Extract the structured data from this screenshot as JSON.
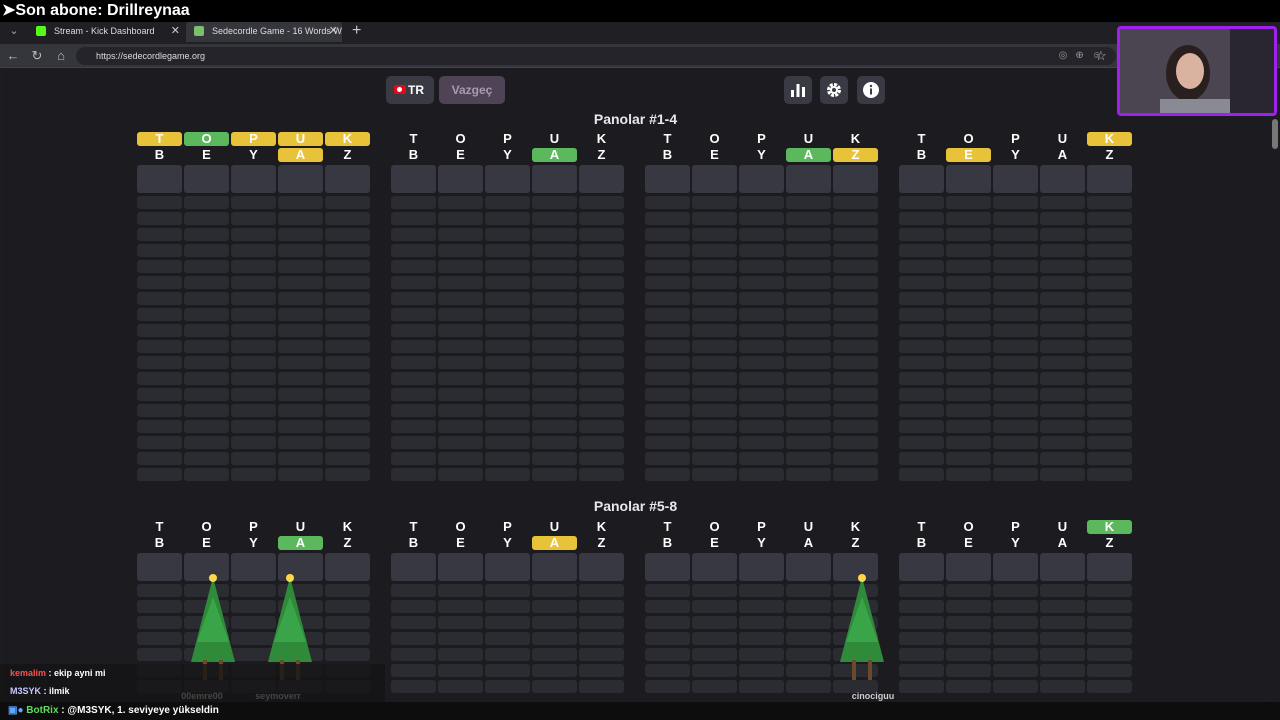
{
  "overlay": {
    "sub_banner": "➤Son abone: Drillreynaa",
    "chat": [
      {
        "user": "kemalim",
        "sep": " : ",
        "text": "ekip ayni mi"
      },
      {
        "user": "M3SYK",
        "sep": " : ",
        "text": "ilmik"
      }
    ],
    "bot_user": "BotRix",
    "bot_sep": " : ",
    "bot_message": "@M3SYK, 1. seviyeye yükseldin",
    "tree_names": [
      "00emre00",
      "seymoverr",
      "cinociguu"
    ]
  },
  "browser": {
    "tabs": [
      {
        "label": "Stream - Kick Dashboard",
        "favicon_color": "#53fc18"
      },
      {
        "label": "Sedecordle Game - 16 Words Wo",
        "favicon_color": "#7bbf6a"
      }
    ],
    "url": "https://sedecordlegame.org"
  },
  "game": {
    "lang_label": "TR",
    "giveup_label": "Vazgeç",
    "icons": [
      "stats-icon",
      "gear-icon",
      "info-icon"
    ],
    "section1_title": "Panolar #1-4",
    "section2_title": "Panolar #5-8",
    "colors": {
      "green": "#5cb85c",
      "yellow": "#e8c33a"
    },
    "boards_top": [
      {
        "rows": [
          [
            [
              "T",
              "y"
            ],
            [
              "O",
              "g"
            ],
            [
              "P",
              "y"
            ],
            [
              "U",
              "y"
            ],
            [
              "K",
              "y"
            ]
          ],
          [
            [
              "B",
              "n"
            ],
            [
              "E",
              "n"
            ],
            [
              "Y",
              "n"
            ],
            [
              "A",
              "y"
            ],
            [
              "Z",
              "n"
            ]
          ]
        ]
      },
      {
        "rows": [
          [
            [
              "T",
              "n"
            ],
            [
              "O",
              "n"
            ],
            [
              "P",
              "n"
            ],
            [
              "U",
              "n"
            ],
            [
              "K",
              "n"
            ]
          ],
          [
            [
              "B",
              "n"
            ],
            [
              "E",
              "n"
            ],
            [
              "Y",
              "n"
            ],
            [
              "A",
              "g"
            ],
            [
              "Z",
              "n"
            ]
          ]
        ]
      },
      {
        "rows": [
          [
            [
              "T",
              "n"
            ],
            [
              "O",
              "n"
            ],
            [
              "P",
              "n"
            ],
            [
              "U",
              "n"
            ],
            [
              "K",
              "n"
            ]
          ],
          [
            [
              "B",
              "n"
            ],
            [
              "E",
              "n"
            ],
            [
              "Y",
              "n"
            ],
            [
              "A",
              "g"
            ],
            [
              "Z",
              "y"
            ]
          ]
        ]
      },
      {
        "rows": [
          [
            [
              "T",
              "n"
            ],
            [
              "O",
              "n"
            ],
            [
              "P",
              "n"
            ],
            [
              "U",
              "n"
            ],
            [
              "K",
              "y"
            ]
          ],
          [
            [
              "B",
              "n"
            ],
            [
              "E",
              "y"
            ],
            [
              "Y",
              "n"
            ],
            [
              "A",
              "n"
            ],
            [
              "Z",
              "n"
            ]
          ]
        ]
      }
    ],
    "boards_bottom": [
      {
        "rows": [
          [
            [
              "T",
              "n"
            ],
            [
              "O",
              "n"
            ],
            [
              "P",
              "n"
            ],
            [
              "U",
              "n"
            ],
            [
              "K",
              "n"
            ]
          ],
          [
            [
              "B",
              "n"
            ],
            [
              "E",
              "n"
            ],
            [
              "Y",
              "n"
            ],
            [
              "A",
              "g"
            ],
            [
              "Z",
              "n"
            ]
          ]
        ]
      },
      {
        "rows": [
          [
            [
              "T",
              "n"
            ],
            [
              "O",
              "n"
            ],
            [
              "P",
              "n"
            ],
            [
              "U",
              "n"
            ],
            [
              "K",
              "n"
            ]
          ],
          [
            [
              "B",
              "n"
            ],
            [
              "E",
              "n"
            ],
            [
              "Y",
              "n"
            ],
            [
              "A",
              "y"
            ],
            [
              "Z",
              "n"
            ]
          ]
        ]
      },
      {
        "rows": [
          [
            [
              "T",
              "n"
            ],
            [
              "O",
              "n"
            ],
            [
              "P",
              "n"
            ],
            [
              "U",
              "n"
            ],
            [
              "K",
              "n"
            ]
          ],
          [
            [
              "B",
              "n"
            ],
            [
              "E",
              "n"
            ],
            [
              "Y",
              "n"
            ],
            [
              "A",
              "n"
            ],
            [
              "Z",
              "n"
            ]
          ]
        ]
      },
      {
        "rows": [
          [
            [
              "T",
              "n"
            ],
            [
              "O",
              "n"
            ],
            [
              "P",
              "n"
            ],
            [
              "U",
              "n"
            ],
            [
              "K",
              "g"
            ]
          ],
          [
            [
              "B",
              "n"
            ],
            [
              "E",
              "n"
            ],
            [
              "Y",
              "n"
            ],
            [
              "A",
              "n"
            ],
            [
              "Z",
              "n"
            ]
          ]
        ]
      }
    ]
  }
}
